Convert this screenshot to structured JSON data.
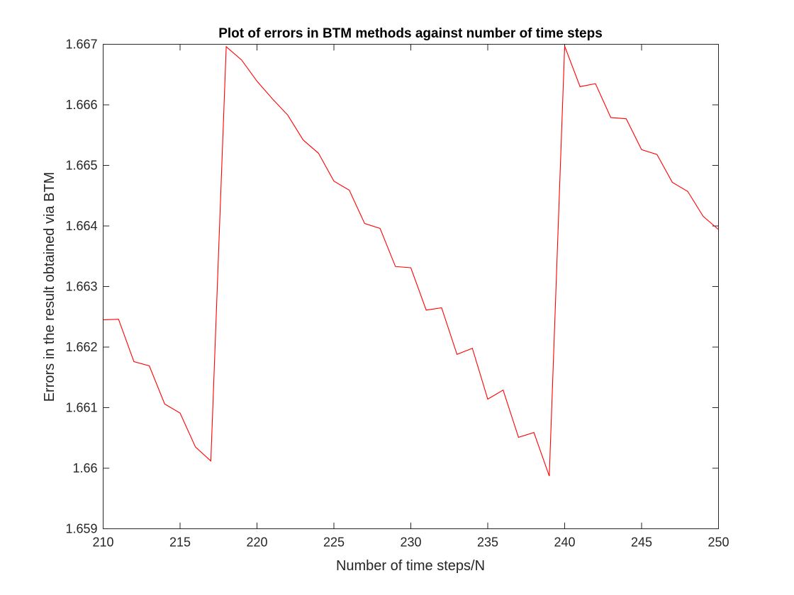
{
  "chart_data": {
    "type": "line",
    "title": "Plot of errors in BTM methods against number of time steps",
    "xlabel": "Number of time steps/N",
    "ylabel": "Errors in the result obtained via BTM",
    "xlim": [
      210,
      250
    ],
    "ylim": [
      1.659,
      1.667
    ],
    "xticks": [
      210,
      215,
      220,
      225,
      230,
      235,
      240,
      245,
      250
    ],
    "yticks": [
      1.659,
      1.66,
      1.661,
      1.662,
      1.663,
      1.664,
      1.665,
      1.666,
      1.667
    ],
    "grid": false,
    "series": [
      {
        "color": "#ff0000",
        "x": [
          210,
          211,
          212,
          213,
          214,
          215,
          216,
          217,
          218,
          219,
          220,
          221,
          222,
          223,
          224,
          225,
          226,
          227,
          228,
          229,
          230,
          231,
          232,
          233,
          234,
          235,
          236,
          237,
          238,
          239,
          240,
          241,
          242,
          243,
          244,
          245,
          246,
          247,
          248,
          249,
          250
        ],
        "y": [
          1.66245,
          1.66246,
          1.66176,
          1.66169,
          1.66106,
          1.66091,
          1.66035,
          1.66012,
          1.66696,
          1.66674,
          1.66639,
          1.6661,
          1.66583,
          1.66542,
          1.6652,
          1.66474,
          1.66459,
          1.66404,
          1.66396,
          1.66333,
          1.66331,
          1.66261,
          1.66265,
          1.66188,
          1.66198,
          1.66114,
          1.66129,
          1.66051,
          1.66059,
          1.65987,
          1.66697,
          1.6663,
          1.66635,
          1.66579,
          1.66577,
          1.66526,
          1.66518,
          1.66472,
          1.66457,
          1.66416,
          1.66394
        ]
      }
    ]
  }
}
